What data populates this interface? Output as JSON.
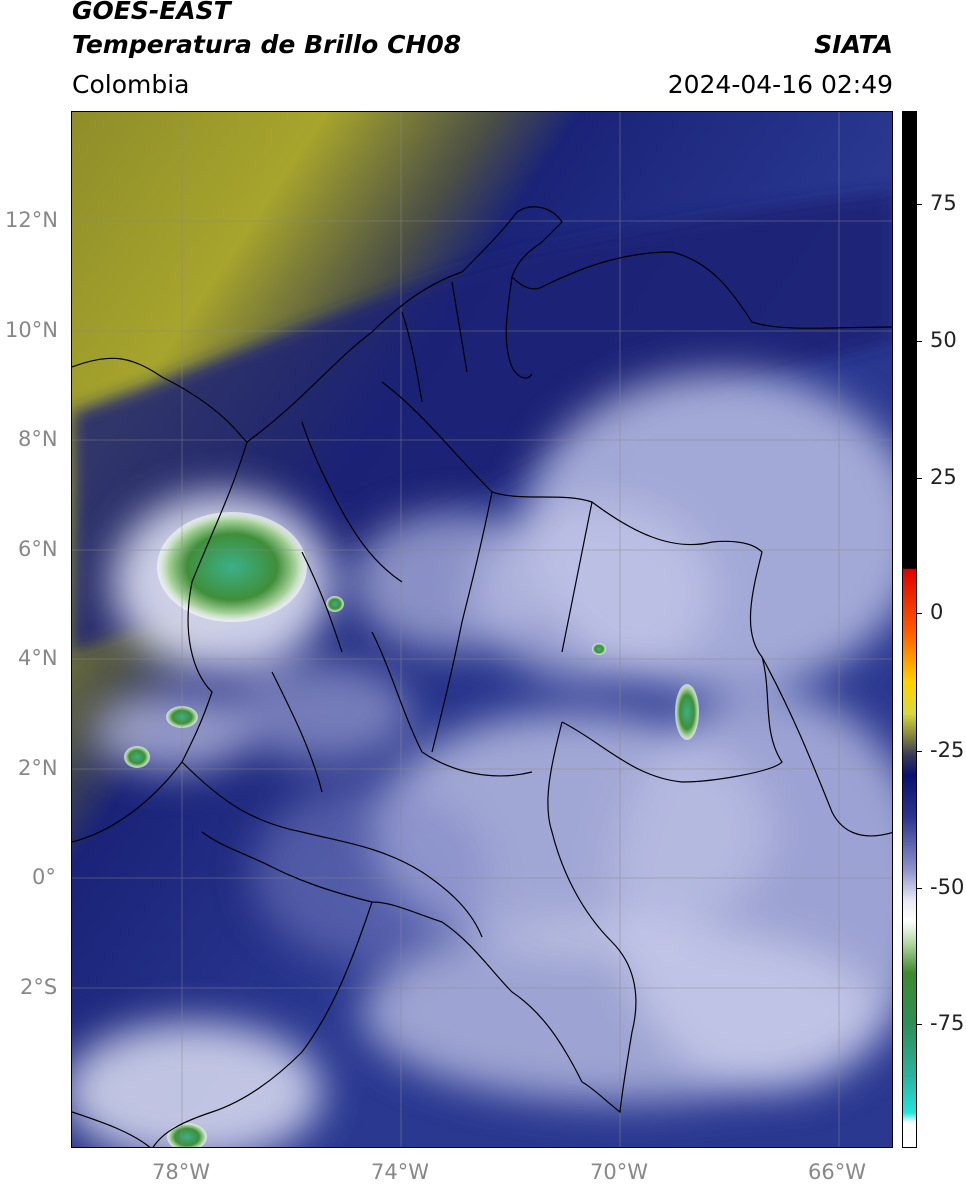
{
  "header": {
    "satellite": "GOES-EAST",
    "product": "Temperatura de Brillo CH08",
    "region": "Colombia",
    "agency": "SIATA",
    "timestamp": "2024-04-16 02:49"
  },
  "map": {
    "lat_range": [
      -4.97,
      14.0
    ],
    "lon_range": [
      -79.8,
      -64.8
    ],
    "lat_ticks": [
      "12°N",
      "10°N",
      "8°N",
      "6°N",
      "4°N",
      "2°N",
      "0°",
      "2°S"
    ],
    "lon_ticks": [
      "78°W",
      "74°W",
      "70°W",
      "66°W"
    ],
    "grid": true,
    "colors": {
      "warm_dry": "#9c9b2c",
      "mid": "#1d2a8a",
      "cold": "#c9cdea",
      "coldest": "#2e8c3e"
    }
  },
  "colorbar": {
    "ticks": [
      "75",
      "50",
      "25",
      "0",
      "-25",
      "-50",
      "-75"
    ]
  }
}
